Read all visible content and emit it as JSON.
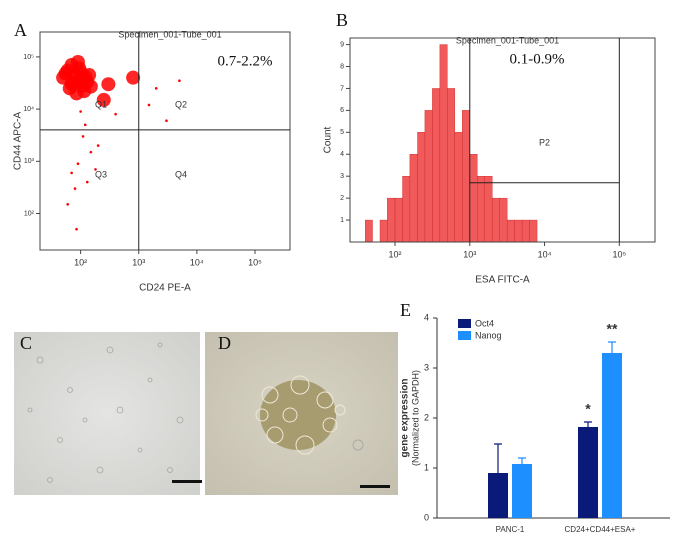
{
  "chart_data": [
    {
      "type": "scatter",
      "panel": "A",
      "title": "Specimen_001-Tube_001",
      "x_label": "CD24 PE-A",
      "y_label": "CD44 APC-A",
      "log_x": true,
      "log_y": true,
      "color": "#ff0000",
      "xlim": [
        20,
        400000
      ],
      "ylim": [
        20,
        300000
      ],
      "xticks": [
        {
          "value": 100,
          "label": "10²"
        },
        {
          "value": 1000,
          "label": "10³"
        },
        {
          "value": 10000,
          "label": "10⁴"
        },
        {
          "value": 100000,
          "label": "10⁵"
        }
      ],
      "yticks": [
        {
          "value": 100,
          "label": "10²"
        },
        {
          "value": 1000,
          "label": "10³"
        },
        {
          "value": 10000,
          "label": "10⁴"
        },
        {
          "value": 100000,
          "label": "10⁵"
        }
      ],
      "x": [
        50,
        60,
        70,
        80,
        90,
        100,
        110,
        120,
        70,
        85,
        95,
        105,
        65,
        75,
        130,
        150,
        55,
        90,
        115,
        140,
        300,
        800,
        2000,
        5000,
        1500,
        120,
        200,
        90,
        80,
        150,
        70,
        400,
        60,
        110,
        130,
        3000,
        250,
        100,
        85,
        180
      ],
      "y": [
        40000,
        55000,
        30000,
        45000,
        35000,
        50000,
        28000,
        42000,
        70000,
        20000,
        60000,
        38000,
        25000,
        32000,
        33000,
        27000,
        48000,
        80000,
        22000,
        45000,
        30000,
        40000,
        25000,
        35000,
        12000,
        5000,
        2000,
        900,
        300,
        1500,
        600,
        8000,
        150,
        3000,
        400,
        6000,
        15000,
        9000,
        50,
        700
      ],
      "gate_x": 1000,
      "gate_y": 4000,
      "quadrants": [
        "Q1",
        "Q2",
        "Q3",
        "Q4"
      ],
      "annotation": "0.7-2.2%"
    },
    {
      "type": "histogram",
      "panel": "B",
      "title": "Specimen_001-Tube_001",
      "x_label": "ESA FITC-A",
      "y_label": "Count",
      "log_x": true,
      "color": "#f05a5a",
      "xlim": [
        25,
        300000
      ],
      "ylim": [
        0,
        9.3
      ],
      "xticks": [
        {
          "value": 100,
          "label": "10²"
        },
        {
          "value": 1000,
          "label": "10³"
        },
        {
          "value": 10000,
          "label": "10⁴"
        },
        {
          "value": 100000,
          "label": "10⁵"
        }
      ],
      "yticks": [
        1,
        2,
        3,
        4,
        5,
        6,
        7,
        8,
        9
      ],
      "bins": [
        40,
        50,
        63,
        79,
        100,
        126,
        158,
        200,
        251,
        316,
        398,
        501,
        631,
        794,
        1000,
        1259,
        1585,
        1995,
        2512,
        3162,
        3981,
        5012,
        6310,
        7943
      ],
      "counts": [
        1,
        0,
        1,
        2,
        2,
        3,
        4,
        5,
        6,
        7,
        9,
        7,
        5,
        6,
        4,
        3,
        3,
        2,
        2,
        1,
        1,
        1,
        1
      ],
      "gate": {
        "name": "P2",
        "from": 1000,
        "to": 100000,
        "level": 2.7
      },
      "annotation": "0.1-0.9%"
    },
    {
      "type": "bar",
      "panel": "E",
      "y_label": "gene expression",
      "y_sublabel": "(Normalized to GAPDH)",
      "categories": [
        "PANC-1",
        "CD24+CD44+ESA+"
      ],
      "series": [
        {
          "name": "Oct4",
          "color": "#0a1a78",
          "values": [
            0.9,
            1.82
          ],
          "errors": [
            0.58,
            0.1
          ]
        },
        {
          "name": "Nanog",
          "color": "#1e8fff",
          "values": [
            1.08,
            3.3
          ],
          "errors": [
            0.12,
            0.22
          ]
        }
      ],
      "ylim": [
        0,
        4
      ],
      "yticks": [
        0,
        1,
        2,
        3,
        4
      ],
      "annotations": [
        {
          "text": "*",
          "series": 0,
          "index": 1
        },
        {
          "text": "**",
          "series": 1,
          "index": 1
        }
      ]
    }
  ],
  "images": [
    {
      "panel": "C"
    },
    {
      "panel": "D"
    }
  ]
}
